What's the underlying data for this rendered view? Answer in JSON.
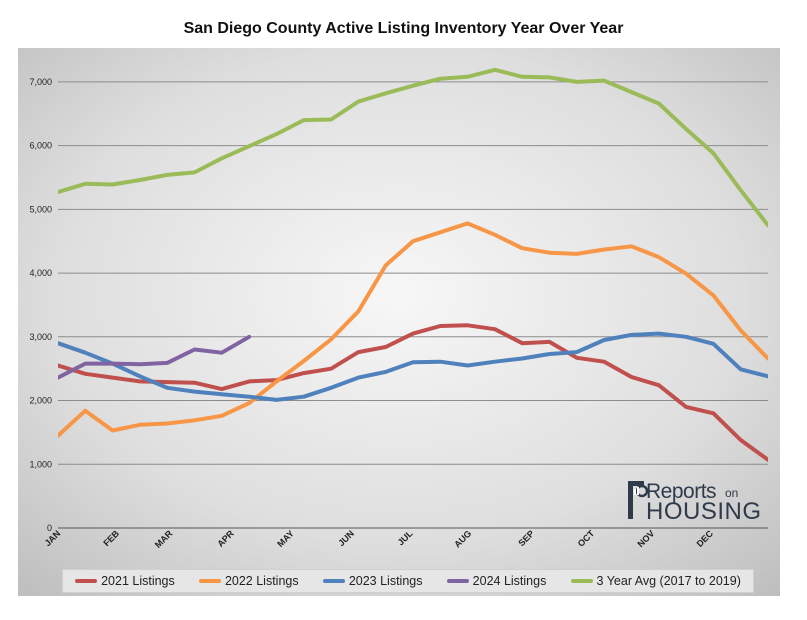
{
  "chart_data": {
    "type": "line",
    "title": "San Diego County Active Listing Inventory Year Over Year",
    "xlabel": "",
    "ylabel": "",
    "ylim": [
      0,
      7500
    ],
    "yticks": [
      0,
      1000,
      2000,
      3000,
      4000,
      5000,
      6000,
      7000
    ],
    "ytick_labels": [
      "0",
      "1,000",
      "2,000",
      "3,000",
      "4,000",
      "5,000",
      "6,000",
      "7,000"
    ],
    "xlim": [
      0,
      52
    ],
    "xticks": [
      {
        "label": "JAN",
        "x": 0
      },
      {
        "label": "FEB",
        "x": 4.3
      },
      {
        "label": "MAR",
        "x": 8.2
      },
      {
        "label": "APR",
        "x": 12.7
      },
      {
        "label": "MAY",
        "x": 17.1
      },
      {
        "label": "JUN",
        "x": 21.5
      },
      {
        "label": "JUL",
        "x": 25.8
      },
      {
        "label": "AUG",
        "x": 30.1
      },
      {
        "label": "SEP",
        "x": 34.7
      },
      {
        "label": "OCT",
        "x": 39.1
      },
      {
        "label": "NOV",
        "x": 43.5
      },
      {
        "label": "DEC",
        "x": 47.8
      }
    ],
    "grid": true,
    "legend_position": "bottom",
    "series": [
      {
        "name": "2021 Listings",
        "color": "#c0504d",
        "x": [
          0,
          2,
          4,
          6,
          8,
          10,
          12,
          14,
          16,
          18,
          20,
          22,
          24,
          26,
          28,
          30,
          32,
          34,
          36,
          38,
          40,
          42,
          44,
          46,
          48,
          50,
          52
        ],
        "y": [
          2550,
          2420,
          2360,
          2300,
          2290,
          2280,
          2180,
          2300,
          2320,
          2430,
          2500,
          2760,
          2840,
          3050,
          3170,
          3180,
          3120,
          2900,
          2920,
          2670,
          2610,
          2370,
          2240,
          1900,
          1800,
          1380,
          1070
        ]
      },
      {
        "name": "2022 Listings",
        "color": "#f79646",
        "x": [
          0,
          2,
          4,
          6,
          8,
          10,
          12,
          14,
          16,
          18,
          20,
          22,
          24,
          26,
          28,
          30,
          32,
          34,
          36,
          38,
          40,
          42,
          44,
          46,
          48,
          50,
          52
        ],
        "y": [
          1450,
          1840,
          1530,
          1620,
          1640,
          1690,
          1760,
          1960,
          2300,
          2620,
          2960,
          3400,
          4120,
          4500,
          4640,
          4780,
          4600,
          4390,
          4320,
          4300,
          4370,
          4420,
          4250,
          3990,
          3650,
          3100,
          2660
        ]
      },
      {
        "name": "2023 Listings",
        "color": "#4f81bd",
        "x": [
          0,
          2,
          4,
          6,
          8,
          10,
          12,
          14,
          16,
          18,
          20,
          22,
          24,
          26,
          28,
          30,
          32,
          34,
          36,
          38,
          40,
          42,
          44,
          46,
          48,
          50,
          52
        ],
        "y": [
          2900,
          2750,
          2580,
          2380,
          2200,
          2140,
          2100,
          2060,
          2010,
          2060,
          2200,
          2360,
          2450,
          2600,
          2610,
          2550,
          2610,
          2660,
          2730,
          2760,
          2950,
          3030,
          3050,
          3000,
          2890,
          2490,
          2380
        ]
      },
      {
        "name": "2024 Listings",
        "color": "#8064a2",
        "x": [
          0,
          2,
          4,
          6,
          8,
          10,
          12,
          14
        ],
        "y": [
          2360,
          2580,
          2580,
          2570,
          2590,
          2800,
          2750,
          3000
        ]
      },
      {
        "name": "3 Year Avg (2017 to 2019)",
        "color": "#9bbb59",
        "x": [
          0,
          2,
          4,
          6,
          8,
          10,
          12,
          14,
          16,
          18,
          20,
          22,
          24,
          26,
          28,
          30,
          32,
          34,
          36,
          38,
          40,
          42,
          44,
          46,
          48,
          50,
          52
        ],
        "y": [
          5270,
          5400,
          5390,
          5460,
          5540,
          5580,
          5800,
          5990,
          6180,
          6400,
          6410,
          6690,
          6820,
          6940,
          7050,
          7080,
          7190,
          7080,
          7070,
          7000,
          7020,
          6840,
          6660,
          6260,
          5880,
          5300,
          4750
        ]
      }
    ]
  },
  "logo": {
    "reports": "Reports",
    "on": "on",
    "housing": "HOUSING"
  }
}
